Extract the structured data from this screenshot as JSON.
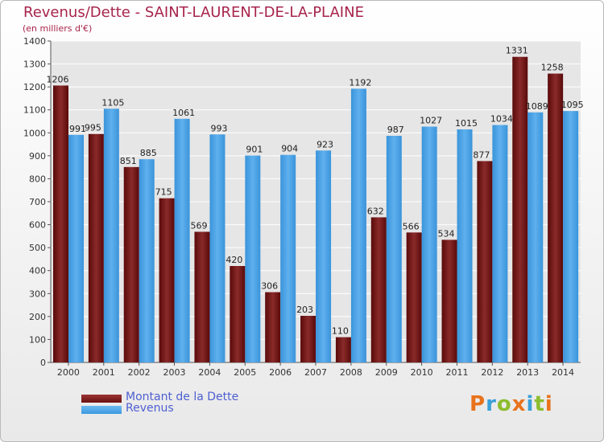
{
  "title": "Revenus/Dette - SAINT-LAURENT-DE-LA-PLAINE",
  "subtitle": "(en milliers d'€)",
  "legend": [
    {
      "label": "Montant de la Dette",
      "color": "#6b0f0f"
    },
    {
      "label": "Revenus",
      "color": "#3d9ae0"
    }
  ],
  "logo": {
    "letters": [
      "P",
      "r",
      "o",
      "x",
      "i",
      "t",
      "i"
    ],
    "colors": [
      "#e8731c",
      "#3aa0d8",
      "#8cbd2e",
      "#e8731c",
      "#3aa0d8",
      "#8cbd2e",
      "#e8731c"
    ]
  },
  "chart_data": {
    "type": "bar",
    "categories": [
      "2000",
      "2001",
      "2002",
      "2003",
      "2004",
      "2005",
      "2006",
      "2007",
      "2008",
      "2009",
      "2010",
      "2011",
      "2012",
      "2013",
      "2014"
    ],
    "series": [
      {
        "name": "Montant de la Dette",
        "color": "#7a1a1a",
        "values": [
          1206,
          995,
          851,
          715,
          569,
          420,
          306,
          203,
          110,
          632,
          566,
          534,
          877,
          1331,
          1258
        ],
        "labels": [
          "1206",
          "995",
          "851",
          "715",
          "569",
          "420",
          "306",
          "203",
          "110",
          "632",
          "566",
          "534",
          "877",
          "1331",
          "1258"
        ]
      },
      {
        "name": "Revenus",
        "color": "#3d9ae0",
        "values": [
          991,
          1105,
          885,
          1061,
          993,
          901,
          904,
          923,
          1192,
          987,
          1027,
          1015,
          1034,
          1089,
          1095
        ],
        "labels": [
          "991",
          "1105",
          "885",
          "1061",
          "993",
          "901",
          "904",
          "923",
          "1192",
          "987",
          "1027",
          "1015",
          "1034",
          "1089",
          "1095"
        ]
      }
    ],
    "yticks": [
      0,
      100,
      200,
      300,
      400,
      500,
      600,
      700,
      800,
      900,
      1000,
      1100,
      1200,
      1300,
      1400
    ],
    "ylim": [
      0,
      1400
    ],
    "grid": true,
    "legend_position": "bottom-left"
  }
}
